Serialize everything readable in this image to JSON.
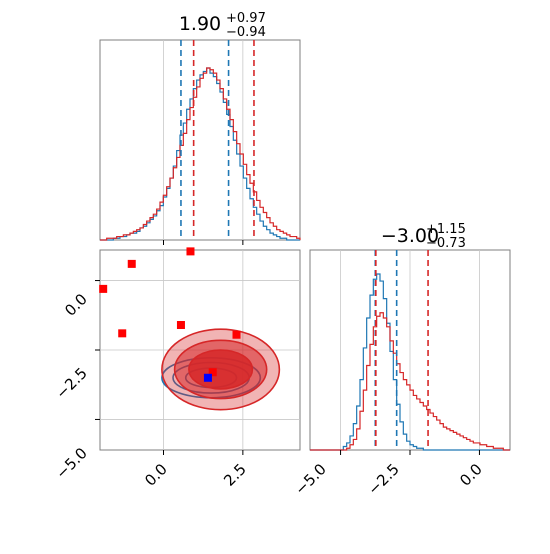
{
  "figure": {
    "titles": {
      "p1_main": "1.90",
      "p1_sup": "+0.97",
      "p1_sub": "−0.94",
      "p2_main": "−3.00",
      "p2_sup": "+1.15",
      "p2_sub": "−0.73"
    },
    "ticks": {
      "x0_1": "0.0",
      "x0_2": "2.5",
      "x1_1": "−5.0",
      "x1_2": "−2.5",
      "x1_3": "0.0",
      "y_1": "0.0",
      "y_2": "−2.5",
      "y_3": "−5.0"
    },
    "colors": {
      "blue": "#1f77b4",
      "red": "#d62728"
    }
  },
  "chart_data": {
    "type": "corner",
    "parameters": [
      {
        "median": 1.9,
        "err_plus": 0.97,
        "err_minus": 0.94
      },
      {
        "median": -3.0,
        "err_plus": 1.15,
        "err_minus": 0.73
      }
    ],
    "ranges": [
      [
        -2.0,
        4.3
      ],
      [
        -6.1,
        1.1
      ]
    ],
    "ticks": {
      "param0": [
        0.0,
        2.5
      ],
      "param1": [
        -5.0,
        -2.5,
        0.0
      ]
    },
    "series": [
      {
        "color": "#1f77b4",
        "quantile_lines_param0": [
          0.55,
          2.05
        ],
        "quantile_lines_param1": [
          -3.75,
          -2.98
        ],
        "hist_param0": [
          0,
          0,
          0,
          0,
          1,
          1,
          2,
          2,
          3,
          4,
          4,
          5,
          7,
          8,
          10,
          12,
          14,
          17,
          20,
          25,
          30,
          36,
          43,
          52,
          61,
          68,
          76,
          82,
          88,
          93,
          96,
          98,
          100,
          97,
          95,
          91,
          86,
          80,
          73,
          66,
          58,
          50,
          43,
          36,
          30,
          24,
          19,
          15,
          11,
          8,
          6,
          4,
          3,
          2,
          1,
          1,
          0,
          0,
          0,
          0
        ],
        "hist_param1": [
          0,
          0,
          0,
          0,
          0,
          0,
          0,
          0,
          0,
          0,
          2,
          4,
          8,
          15,
          25,
          40,
          58,
          75,
          88,
          97,
          100,
          96,
          86,
          72,
          56,
          40,
          26,
          16,
          9,
          5,
          3,
          2,
          1,
          1,
          0,
          0,
          0,
          0,
          0,
          0,
          0,
          0,
          0,
          0,
          0,
          0,
          0,
          0,
          0,
          0,
          0,
          0,
          0,
          0,
          0,
          0,
          0,
          0,
          0,
          0
        ],
        "contour_center": [
          1.5,
          -3.5
        ],
        "contour_radii": [
          [
            0.8,
            0.35
          ],
          [
            1.2,
            0.55
          ],
          [
            1.55,
            0.72
          ]
        ]
      },
      {
        "color": "#d62728",
        "quantile_lines_param0": [
          0.95,
          2.85
        ],
        "quantile_lines_param1": [
          -3.73,
          -1.85
        ],
        "hist_param0": [
          0,
          0,
          1,
          1,
          1,
          2,
          2,
          3,
          3,
          4,
          5,
          6,
          7,
          9,
          11,
          13,
          15,
          18,
          22,
          26,
          31,
          36,
          42,
          48,
          55,
          62,
          70,
          77,
          83,
          89,
          94,
          97,
          100,
          99,
          97,
          93,
          88,
          82,
          76,
          70,
          63,
          56,
          50,
          44,
          38,
          33,
          28,
          23,
          19,
          16,
          13,
          10,
          8,
          6,
          5,
          4,
          3,
          2,
          2,
          1
        ],
        "hist_param1": [
          0,
          0,
          0,
          0,
          0,
          0,
          0,
          0,
          0,
          0,
          0,
          1,
          3,
          6,
          12,
          22,
          34,
          48,
          60,
          70,
          76,
          78,
          75,
          70,
          62,
          55,
          49,
          44,
          40,
          37,
          34,
          31,
          29,
          27,
          25,
          23,
          21,
          19,
          17,
          15,
          13,
          12,
          11,
          10,
          9,
          8,
          7,
          6,
          5,
          4,
          4,
          3,
          3,
          2,
          2,
          1,
          1,
          1,
          0,
          0
        ],
        "contour_center": [
          1.8,
          -3.2
        ],
        "contour_radii": [
          [
            1.0,
            0.7
          ],
          [
            1.45,
            1.05
          ],
          [
            1.85,
            1.45
          ]
        ]
      }
    ],
    "reference_points": [
      {
        "color": "#ff0000",
        "points": [
          [
            -1.0,
            0.6
          ],
          [
            -1.9,
            -0.3
          ],
          [
            -1.3,
            -1.9
          ],
          [
            0.85,
            1.05
          ],
          [
            0.55,
            -1.6
          ],
          [
            2.3,
            -1.95
          ],
          [
            1.55,
            -3.3
          ]
        ]
      },
      {
        "color": "#0000ff",
        "points": [
          [
            1.4,
            -3.5
          ]
        ]
      }
    ]
  }
}
